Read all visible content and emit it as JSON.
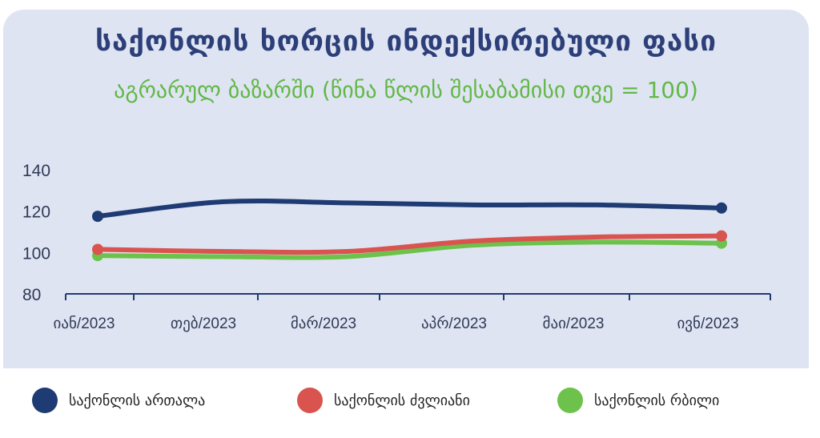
{
  "chart_data": {
    "type": "line",
    "title": "საქონლის ხორცის ინდექსირებული ფასი",
    "subtitle": "აგრარულ ბაზარში (წინა წლის შესაბამისი თვე = 100)",
    "categories": [
      "იან/2023",
      "თებ/2023",
      "მარ/2023",
      "აპრ/2023",
      "მაი/2023",
      "ივნ/2023"
    ],
    "ylim": [
      80,
      140
    ],
    "yticks": [
      "80",
      "100",
      "120",
      "140"
    ],
    "yticks_values": [
      80,
      100,
      120,
      140
    ],
    "grid": false,
    "legend_position": "bottom",
    "series": [
      {
        "name": "საქონლის ართალა",
        "color": "#1f3b73",
        "values": [
          117.5,
          124.5,
          124.0,
          123.0,
          123.0,
          121.5
        ]
      },
      {
        "name": "საქონლის ძვლიანი",
        "color": "#d9534f",
        "values": [
          101.5,
          100.5,
          100.5,
          105.5,
          107.5,
          108.0
        ]
      },
      {
        "name": "საქონლის რბილი",
        "color": "#6cc24a",
        "values": [
          98.5,
          98.0,
          98.0,
          103.5,
          105.0,
          104.5
        ]
      }
    ]
  }
}
